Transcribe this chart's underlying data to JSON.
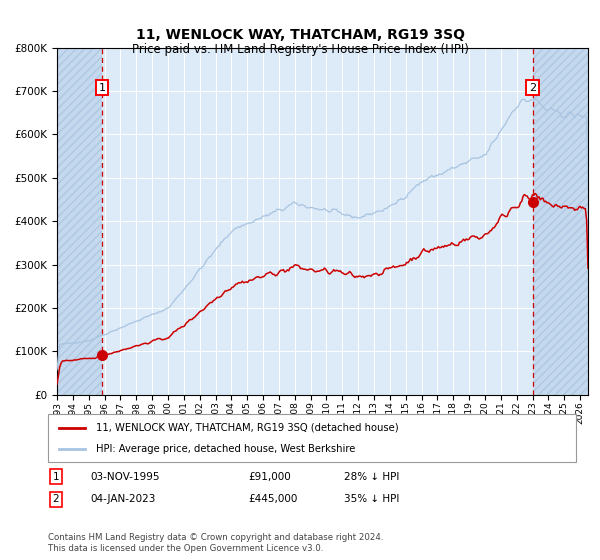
{
  "title": "11, WENLOCK WAY, THATCHAM, RG19 3SQ",
  "subtitle": "Price paid vs. HM Land Registry's House Price Index (HPI)",
  "ylim": [
    0,
    800000
  ],
  "xlim_start": 1993.0,
  "xlim_end": 2026.5,
  "xticks": [
    1993,
    1994,
    1995,
    1996,
    1997,
    1998,
    1999,
    2000,
    2001,
    2002,
    2003,
    2004,
    2005,
    2006,
    2007,
    2008,
    2009,
    2010,
    2011,
    2012,
    2013,
    2014,
    2015,
    2016,
    2017,
    2018,
    2019,
    2020,
    2021,
    2022,
    2023,
    2024,
    2025,
    2026
  ],
  "sale1_x": 1995.84,
  "sale1_y": 91000,
  "sale1_label": "1",
  "sale2_x": 2023.01,
  "sale2_y": 445000,
  "sale2_label": "2",
  "legend_line1": "11, WENLOCK WAY, THATCHAM, RG19 3SQ (detached house)",
  "legend_line2": "HPI: Average price, detached house, West Berkshire",
  "annot1_date": "03-NOV-1995",
  "annot1_price": "£91,000",
  "annot1_hpi": "28% ↓ HPI",
  "annot2_date": "04-JAN-2023",
  "annot2_price": "£445,000",
  "annot2_hpi": "35% ↓ HPI",
  "footnote": "Contains HM Land Registry data © Crown copyright and database right 2024.\nThis data is licensed under the Open Government Licence v3.0.",
  "hpi_color": "#a8c4e0",
  "price_color": "#cc0000",
  "vline_color": "#cc0000",
  "bg_plot_color": "#ddeaf7",
  "grid_color": "#ffffff",
  "dot_color": "#cc0000",
  "hatch_color": "#c4d8ee",
  "title_fontsize": 10,
  "subtitle_fontsize": 9
}
